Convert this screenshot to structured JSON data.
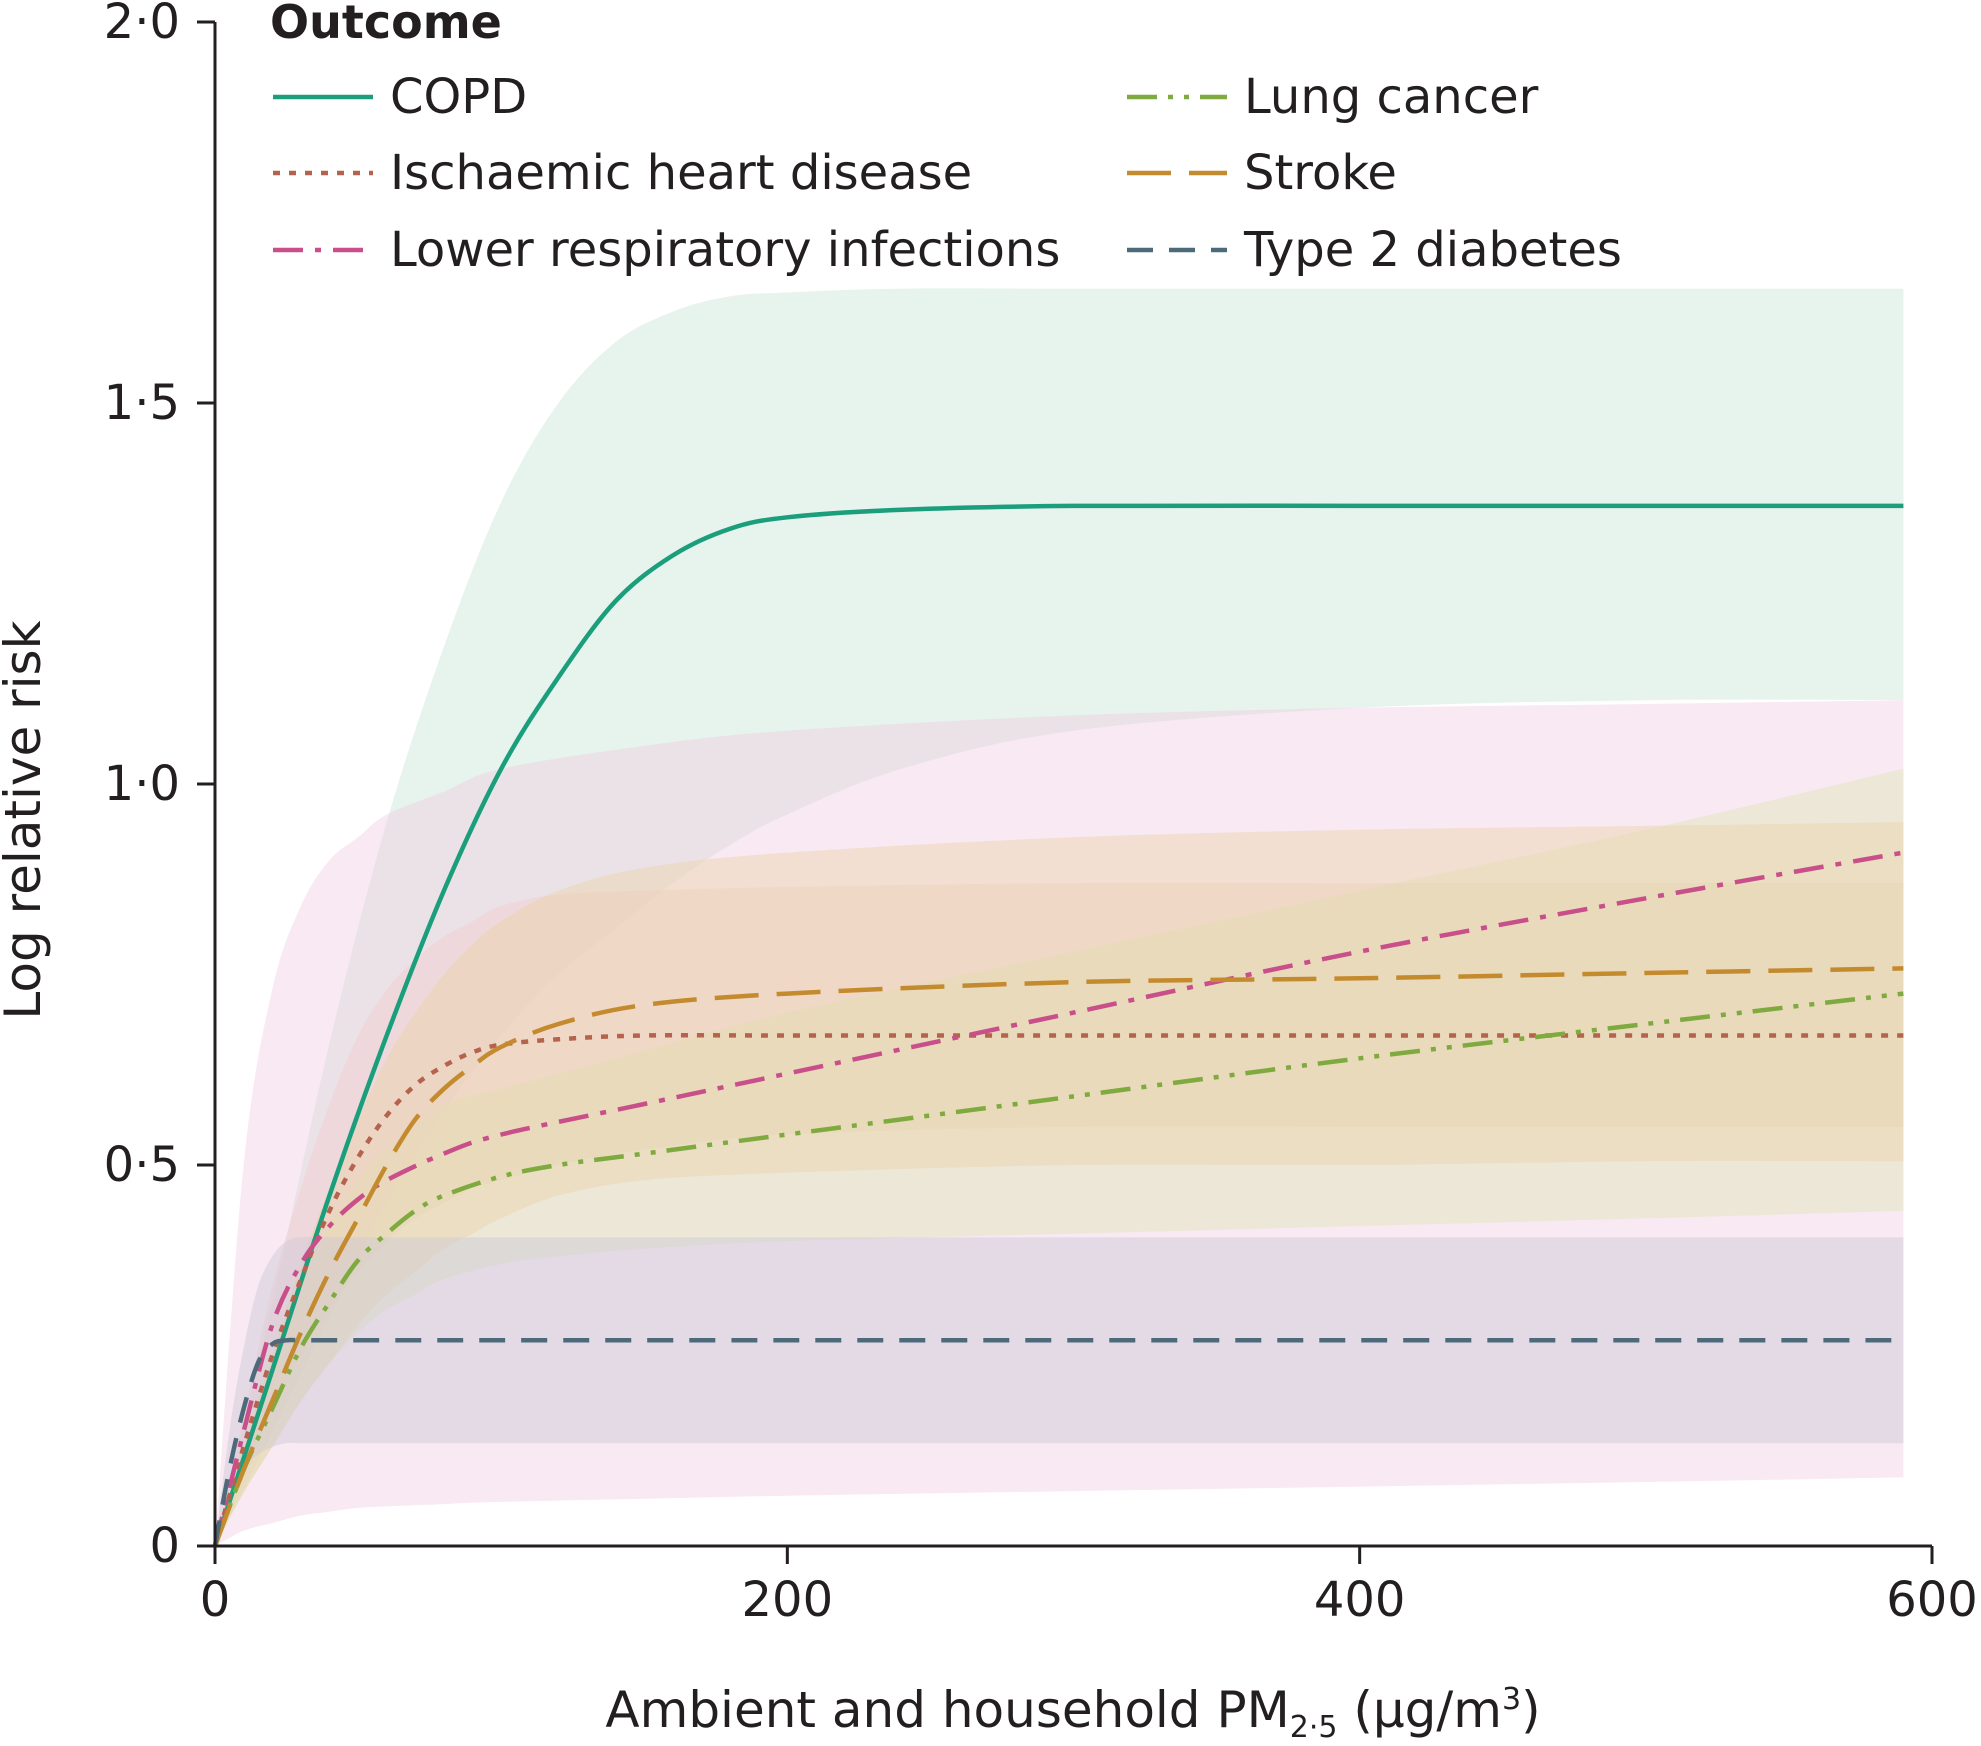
{
  "chart_data": {
    "type": "line",
    "title": "",
    "xlabel": "Ambient and household PM",
    "xlabel_sub": "2·5",
    "xlabel_unit": " (μg/m",
    "xlabel_sup": "3",
    "xlabel_close": ")",
    "ylabel": "Log relative risk",
    "xlim": [
      0,
      600
    ],
    "ylim": [
      0,
      2.0
    ],
    "xticks": [
      0,
      200,
      400,
      600
    ],
    "xtick_labels": [
      "0",
      "200",
      "400",
      "600"
    ],
    "yticks": [
      0,
      0.5,
      1.0,
      1.5,
      2.0
    ],
    "ytick_labels": [
      "0",
      "0·5",
      "1·0",
      "1·5",
      "2·0"
    ],
    "legend_title": "Outcome",
    "legend_position": "top-left",
    "series": [
      {
        "name": "COPD",
        "color": "#1a9e7c",
        "band_color": "#c9e4d6",
        "dash": "solid",
        "x": [
          0,
          20,
          40,
          60,
          80,
          100,
          120,
          140,
          160,
          180,
          200,
          240,
          300,
          400,
          500,
          590
        ],
        "values": [
          0,
          0.23,
          0.46,
          0.67,
          0.86,
          1.02,
          1.14,
          1.24,
          1.3,
          1.335,
          1.35,
          1.36,
          1.365,
          1.365,
          1.365,
          1.365
        ],
        "lower": [
          0,
          0.15,
          0.3,
          0.45,
          0.57,
          0.67,
          0.75,
          0.81,
          0.87,
          0.92,
          0.96,
          1.02,
          1.07,
          1.1,
          1.11,
          1.11
        ],
        "upper": [
          0,
          0.32,
          0.66,
          0.95,
          1.18,
          1.37,
          1.5,
          1.58,
          1.62,
          1.64,
          1.645,
          1.65,
          1.65,
          1.65,
          1.65,
          1.65
        ]
      },
      {
        "name": "Ischaemic heart disease",
        "color": "#b5634d",
        "band_color": "#f3cdb9",
        "dash": "dot",
        "x": [
          0,
          10,
          20,
          30,
          40,
          50,
          60,
          70,
          80,
          90,
          100,
          120,
          150,
          200,
          300,
          400,
          500,
          590
        ],
        "values": [
          0,
          0.13,
          0.25,
          0.35,
          0.44,
          0.51,
          0.565,
          0.605,
          0.63,
          0.648,
          0.658,
          0.665,
          0.67,
          0.67,
          0.67,
          0.67,
          0.67,
          0.67
        ],
        "lower": [
          0,
          0.09,
          0.18,
          0.25,
          0.31,
          0.36,
          0.4,
          0.43,
          0.45,
          0.47,
          0.48,
          0.5,
          0.52,
          0.54,
          0.55,
          0.55,
          0.55,
          0.55
        ],
        "upper": [
          0,
          0.17,
          0.34,
          0.47,
          0.58,
          0.67,
          0.73,
          0.77,
          0.8,
          0.82,
          0.84,
          0.855,
          0.86,
          0.865,
          0.87,
          0.87,
          0.87,
          0.87
        ]
      },
      {
        "name": "Lower respiratory infections",
        "color": "#c94f8a",
        "band_color": "#f0cfe2",
        "dash": "dashdot",
        "x": [
          0,
          10,
          20,
          30,
          40,
          50,
          60,
          80,
          100,
          150,
          200,
          300,
          400,
          500,
          590
        ],
        "values": [
          0,
          0.15,
          0.29,
          0.37,
          0.42,
          0.455,
          0.48,
          0.515,
          0.54,
          0.58,
          0.62,
          0.7,
          0.78,
          0.85,
          0.91
        ],
        "lower": [
          0,
          0.02,
          0.03,
          0.04,
          0.045,
          0.05,
          0.052,
          0.055,
          0.058,
          0.062,
          0.066,
          0.072,
          0.078,
          0.084,
          0.09
        ],
        "upper": [
          0,
          0.5,
          0.73,
          0.84,
          0.9,
          0.93,
          0.96,
          0.99,
          1.02,
          1.05,
          1.07,
          1.09,
          1.1,
          1.105,
          1.11
        ]
      },
      {
        "name": "Lung cancer",
        "color": "#7faa3f",
        "band_color": "#dde5b5",
        "dash": "dashdotdot",
        "x": [
          0,
          10,
          20,
          30,
          40,
          50,
          60,
          70,
          80,
          100,
          120,
          150,
          200,
          300,
          400,
          500,
          590
        ],
        "values": [
          0,
          0.1,
          0.18,
          0.26,
          0.32,
          0.375,
          0.41,
          0.44,
          0.46,
          0.485,
          0.5,
          0.515,
          0.54,
          0.59,
          0.64,
          0.685,
          0.725
        ],
        "lower": [
          0,
          0.07,
          0.13,
          0.19,
          0.24,
          0.28,
          0.31,
          0.33,
          0.35,
          0.37,
          0.38,
          0.39,
          0.4,
          0.41,
          0.42,
          0.43,
          0.44
        ],
        "upper": [
          0,
          0.13,
          0.25,
          0.35,
          0.42,
          0.48,
          0.52,
          0.55,
          0.58,
          0.6,
          0.62,
          0.65,
          0.7,
          0.78,
          0.86,
          0.94,
          1.02
        ]
      },
      {
        "name": "Stroke",
        "color": "#c48a2e",
        "band_color": "#ecd3a8",
        "dash": "longdash",
        "x": [
          0,
          10,
          20,
          30,
          40,
          50,
          60,
          70,
          80,
          90,
          100,
          120,
          150,
          200,
          300,
          400,
          500,
          590
        ],
        "values": [
          0,
          0.1,
          0.19,
          0.28,
          0.36,
          0.43,
          0.5,
          0.56,
          0.6,
          0.63,
          0.655,
          0.685,
          0.71,
          0.725,
          0.74,
          0.745,
          0.752,
          0.758
        ],
        "lower": [
          0,
          0.07,
          0.13,
          0.19,
          0.24,
          0.29,
          0.33,
          0.36,
          0.39,
          0.41,
          0.43,
          0.46,
          0.48,
          0.49,
          0.5,
          0.5,
          0.505,
          0.505
        ],
        "upper": [
          0,
          0.13,
          0.25,
          0.37,
          0.47,
          0.56,
          0.64,
          0.7,
          0.75,
          0.79,
          0.82,
          0.86,
          0.89,
          0.91,
          0.93,
          0.94,
          0.945,
          0.95
        ]
      },
      {
        "name": "Type 2 diabetes",
        "color": "#4d6a7a",
        "band_color": "#ccc8d6",
        "dash": "dash",
        "x": [
          0,
          5,
          10,
          15,
          20,
          25,
          30,
          40,
          60,
          100,
          200,
          300,
          400,
          500,
          590
        ],
        "values": [
          0,
          0.1,
          0.18,
          0.24,
          0.265,
          0.27,
          0.27,
          0.27,
          0.27,
          0.27,
          0.27,
          0.27,
          0.27,
          0.27,
          0.27
        ],
        "lower": [
          0,
          0.06,
          0.1,
          0.12,
          0.13,
          0.135,
          0.135,
          0.135,
          0.135,
          0.135,
          0.135,
          0.135,
          0.135,
          0.135,
          0.135
        ],
        "upper": [
          0,
          0.15,
          0.26,
          0.34,
          0.38,
          0.4,
          0.405,
          0.405,
          0.405,
          0.405,
          0.405,
          0.405,
          0.405,
          0.405,
          0.405
        ]
      }
    ]
  }
}
